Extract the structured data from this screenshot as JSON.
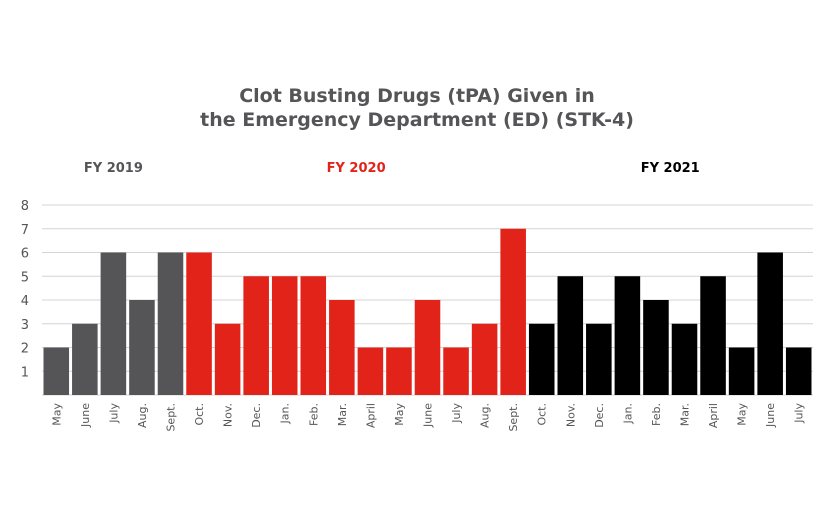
{
  "chart_data": {
    "type": "bar",
    "title": "Clot Busting Drugs (tPA) Given in the Emergency Department (ED) (STK-4)",
    "title_lines": [
      "Clot Busting Drugs (tPA) Given in",
      "the Emergency Department (ED) (STK-4)"
    ],
    "xlabel": "",
    "ylabel": "",
    "ylim": [
      0,
      8
    ],
    "yticks": [
      1,
      2,
      3,
      4,
      5,
      6,
      7,
      8
    ],
    "grid": true,
    "groups": [
      {
        "label": "FY 2019",
        "color": "#555558",
        "categories": [
          "May",
          "June",
          "July",
          "Aug.",
          "Sept."
        ],
        "values": [
          2,
          3,
          6,
          4,
          6
        ]
      },
      {
        "label": "FY 2020",
        "color": "#e2231a",
        "categories": [
          "Oct.",
          "Nov.",
          "Dec.",
          "Jan.",
          "Feb.",
          "Mar.",
          "April",
          "May",
          "June",
          "July",
          "Aug.",
          "Sept."
        ],
        "values": [
          6,
          3,
          5,
          5,
          5,
          4,
          2,
          2,
          4,
          2,
          3,
          7
        ]
      },
      {
        "label": "FY 2021",
        "color": "#000000",
        "categories": [
          "Oct.",
          "Nov.",
          "Dec.",
          "Jan.",
          "Feb.",
          "Mar.",
          "April",
          "May",
          "June",
          "July"
        ],
        "values": [
          3,
          5,
          3,
          5,
          4,
          3,
          5,
          2,
          6,
          2
        ]
      }
    ]
  },
  "colors": {
    "grid": "#d4d4d4",
    "axis_text": "#555558",
    "fy2019": "#555558",
    "fy2020": "#e2231a",
    "fy2021": "#000000"
  }
}
